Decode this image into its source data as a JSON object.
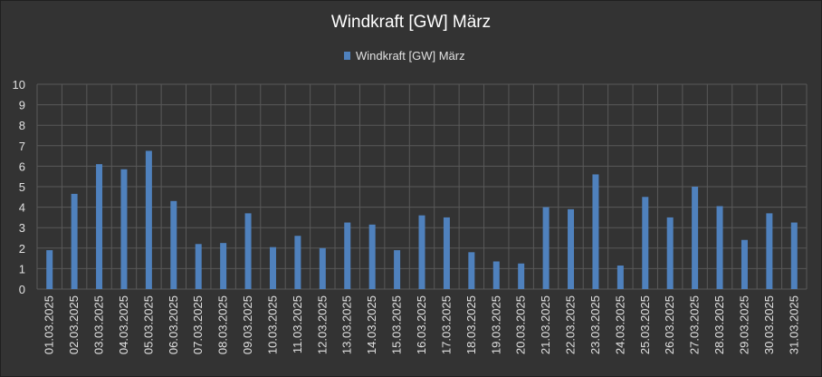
{
  "chart_data": {
    "type": "bar",
    "title": "Windkraft [GW] März",
    "xlabel": "",
    "ylabel": "",
    "ylim": [
      0,
      10
    ],
    "yticks": [
      0,
      1,
      2,
      3,
      4,
      5,
      6,
      7,
      8,
      9,
      10
    ],
    "grid": true,
    "legend_position": "top",
    "categories": [
      "01.03.2025",
      "02.03.2025",
      "03.03.2025",
      "04.03.2025",
      "05.03.2025",
      "06.03.2025",
      "07.03.2025",
      "08.03.2025",
      "09.03.2025",
      "10.03.2025",
      "11.03.2025",
      "12.03.2025",
      "13.03.2025",
      "14.03.2025",
      "15.03.2025",
      "16.03.2025",
      "17.03.2025",
      "18.03.2025",
      "19.03.2025",
      "20.03.2025",
      "21.03.2025",
      "22.03.2025",
      "23.03.2025",
      "24.03.2025",
      "25.03.2025",
      "26.03.2025",
      "27.03.2025",
      "28.03.2025",
      "29.03.2025",
      "30.03.2025",
      "31.03.2025"
    ],
    "series": [
      {
        "name": "Windkraft [GW] März",
        "color": "#4f81bd",
        "values": [
          1.9,
          4.65,
          6.1,
          5.85,
          6.75,
          4.3,
          2.2,
          2.25,
          3.7,
          2.05,
          2.6,
          2.0,
          3.25,
          3.15,
          1.9,
          3.6,
          3.5,
          1.8,
          1.35,
          1.25,
          4.0,
          3.9,
          5.6,
          1.15,
          4.5,
          3.5,
          5.0,
          4.05,
          2.4,
          3.7,
          3.25
        ]
      }
    ]
  }
}
